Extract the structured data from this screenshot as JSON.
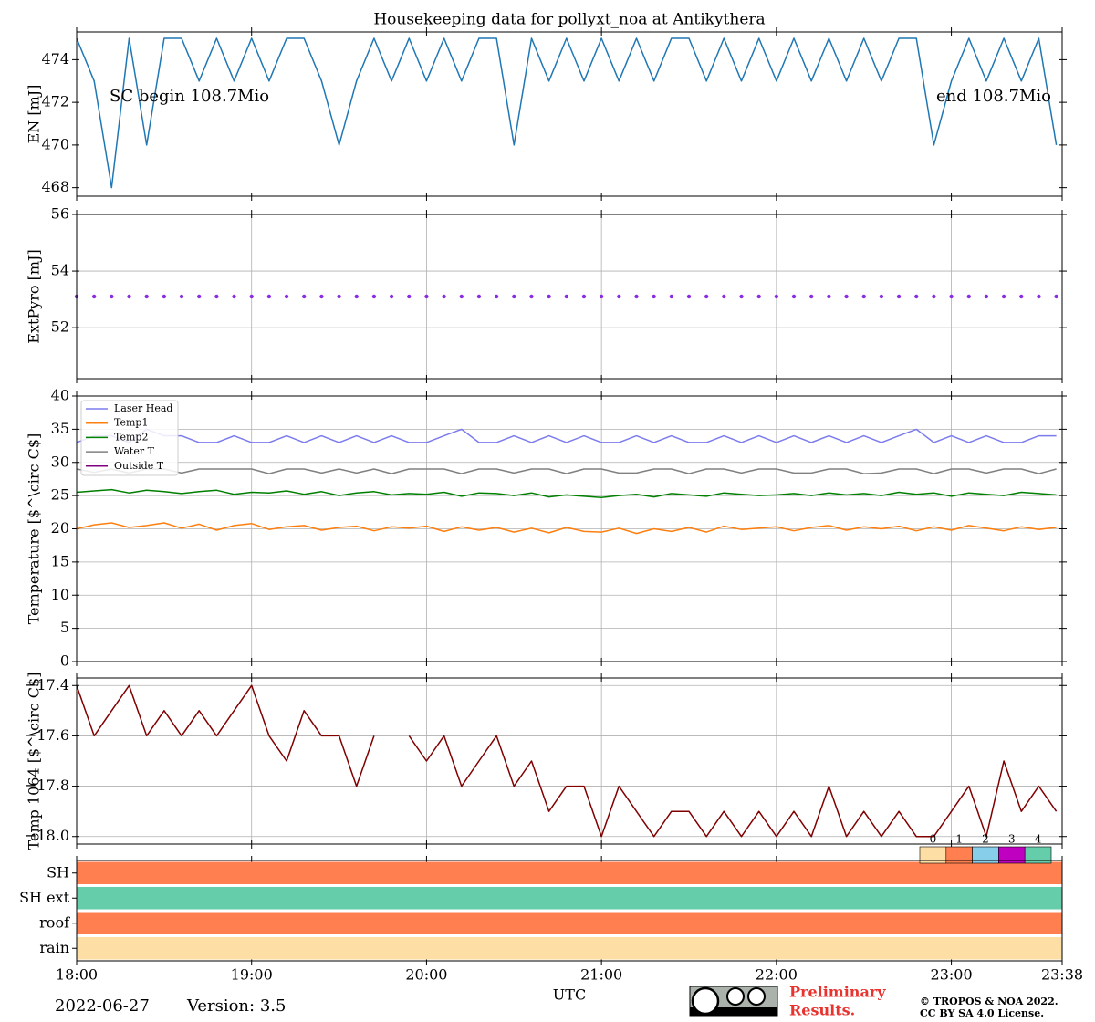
{
  "chart_data": [
    {
      "type": "line",
      "title": "Housekeeping data for pollyxt_noa at Antikythera",
      "ylabel": "EN [mJ]",
      "annotations": [
        "SC begin 108.7Mio",
        "end 108.7Mio"
      ],
      "color": "#1f77b4",
      "grid": false,
      "xlim": [
        "18:00",
        "23:38"
      ],
      "xticks": [
        "18:00",
        "19:00",
        "20:00",
        "21:00",
        "22:00",
        "23:00",
        "23:38"
      ],
      "ylim": [
        467.6,
        475.3
      ],
      "yticks": [
        468,
        470,
        472,
        474
      ],
      "x": [
        "18:00",
        "18:06",
        "18:12",
        "18:18",
        "18:24",
        "18:30",
        "18:36",
        "18:42",
        "18:48",
        "18:54",
        "19:00",
        "19:06",
        "19:12",
        "19:18",
        "19:24",
        "19:30",
        "19:36",
        "19:42",
        "19:48",
        "19:54",
        "20:00",
        "20:06",
        "20:12",
        "20:18",
        "20:24",
        "20:30",
        "20:36",
        "20:42",
        "20:48",
        "20:54",
        "21:00",
        "21:06",
        "21:12",
        "21:18",
        "21:24",
        "21:30",
        "21:36",
        "21:42",
        "21:48",
        "21:54",
        "22:00",
        "22:06",
        "22:12",
        "22:18",
        "22:24",
        "22:30",
        "22:36",
        "22:42",
        "22:48",
        "22:54",
        "23:00",
        "23:06",
        "23:12",
        "23:18",
        "23:24",
        "23:30",
        "23:36"
      ],
      "values": [
        475,
        473,
        468,
        475,
        470,
        475,
        475,
        473,
        475,
        473,
        475,
        473,
        475,
        475,
        473,
        470,
        473,
        475,
        473,
        475,
        473,
        475,
        473,
        475,
        475,
        470,
        475,
        473,
        475,
        473,
        475,
        473,
        475,
        473,
        475,
        475,
        473,
        475,
        473,
        475,
        473,
        475,
        473,
        475,
        473,
        475,
        473,
        475,
        475,
        470,
        473,
        475,
        473,
        475,
        473,
        475,
        470
      ]
    },
    {
      "type": "scatter",
      "ylabel": "ExtPyro [mJ]",
      "color": "#8a2be2",
      "grid": true,
      "xlim": [
        "18:00",
        "23:38"
      ],
      "xticks": [
        "18:00",
        "19:00",
        "20:00",
        "21:00",
        "22:00",
        "23:00",
        "23:38"
      ],
      "ylim": [
        50.2,
        56
      ],
      "yticks": [
        52,
        54,
        56
      ],
      "x": [
        "18:00",
        "18:06",
        "18:12",
        "18:18",
        "18:24",
        "18:30",
        "18:36",
        "18:42",
        "18:48",
        "18:54",
        "19:00",
        "19:06",
        "19:12",
        "19:18",
        "19:24",
        "19:30",
        "19:36",
        "19:42",
        "19:48",
        "19:54",
        "20:00",
        "20:06",
        "20:12",
        "20:18",
        "20:24",
        "20:30",
        "20:36",
        "20:42",
        "20:48",
        "20:54",
        "21:00",
        "21:06",
        "21:12",
        "21:18",
        "21:24",
        "21:30",
        "21:36",
        "21:42",
        "21:48",
        "21:54",
        "22:00",
        "22:06",
        "22:12",
        "22:18",
        "22:24",
        "22:30",
        "22:36",
        "22:42",
        "22:48",
        "22:54",
        "23:00",
        "23:06",
        "23:12",
        "23:18",
        "23:24",
        "23:30",
        "23:36"
      ],
      "values": [
        53.1,
        53.1,
        53.1,
        53.1,
        53.1,
        53.1,
        53.1,
        53.1,
        53.1,
        53.1,
        53.1,
        53.1,
        53.1,
        53.1,
        53.1,
        53.1,
        53.1,
        53.1,
        53.1,
        53.1,
        53.1,
        53.1,
        53.1,
        53.1,
        53.1,
        53.1,
        53.1,
        53.1,
        53.1,
        53.1,
        53.1,
        53.1,
        53.1,
        53.1,
        53.1,
        53.1,
        53.1,
        53.1,
        53.1,
        53.1,
        53.1,
        53.1,
        53.1,
        53.1,
        53.1,
        53.1,
        53.1,
        53.1,
        53.1,
        53.1,
        53.1,
        53.1,
        53.1,
        53.1,
        53.1,
        53.1,
        53.1
      ]
    },
    {
      "type": "line",
      "ylabel": "Temperature [$^\\circ C$]",
      "grid": true,
      "legend": "upper left",
      "xlim": [
        "18:00",
        "23:38"
      ],
      "xticks": [
        "18:00",
        "19:00",
        "20:00",
        "21:00",
        "22:00",
        "23:00",
        "23:38"
      ],
      "ylim": [
        0,
        40
      ],
      "yticks": [
        0,
        5,
        10,
        15,
        20,
        25,
        30,
        35,
        40
      ],
      "x": [
        "18:00",
        "18:06",
        "18:12",
        "18:18",
        "18:24",
        "18:30",
        "18:36",
        "18:42",
        "18:48",
        "18:54",
        "19:00",
        "19:06",
        "19:12",
        "19:18",
        "19:24",
        "19:30",
        "19:36",
        "19:42",
        "19:48",
        "19:54",
        "20:00",
        "20:06",
        "20:12",
        "20:18",
        "20:24",
        "20:30",
        "20:36",
        "20:42",
        "20:48",
        "20:54",
        "21:00",
        "21:06",
        "21:12",
        "21:18",
        "21:24",
        "21:30",
        "21:36",
        "21:42",
        "21:48",
        "21:54",
        "22:00",
        "22:06",
        "22:12",
        "22:18",
        "22:24",
        "22:30",
        "22:36",
        "22:42",
        "22:48",
        "22:54",
        "23:00",
        "23:06",
        "23:12",
        "23:18",
        "23:24",
        "23:30",
        "23:36"
      ],
      "series": [
        {
          "name": "Laser Head",
          "color": "#7b7bee",
          "values": [
            33,
            34,
            34,
            33,
            35,
            34,
            34,
            33,
            33,
            34,
            33,
            33,
            34,
            33,
            34,
            33,
            34,
            33,
            34,
            33,
            33,
            34,
            35,
            33,
            33,
            34,
            33,
            34,
            33,
            34,
            33,
            33,
            34,
            33,
            34,
            33,
            33,
            34,
            33,
            34,
            33,
            34,
            33,
            34,
            33,
            34,
            33,
            34,
            35,
            33,
            34,
            33,
            34,
            33,
            33,
            34,
            34
          ]
        },
        {
          "name": "Temp1",
          "color": "#ff7f0e",
          "values": [
            20,
            20.6,
            20.9,
            20.2,
            20.5,
            20.9,
            20.1,
            20.7,
            19.8,
            20.5,
            20.8,
            19.9,
            20.3,
            20.5,
            19.8,
            20.2,
            20.4,
            19.7,
            20.3,
            20.1,
            20.4,
            19.6,
            20.3,
            19.8,
            20.2,
            19.5,
            20.1,
            19.4,
            20.2,
            19.6,
            19.5,
            20.1,
            19.3,
            20.0,
            19.6,
            20.2,
            19.5,
            20.4,
            19.9,
            20.1,
            20.3,
            19.7,
            20.2,
            20.5,
            19.8,
            20.3,
            20.0,
            20.4,
            19.7,
            20.3,
            19.8,
            20.5,
            20.1,
            19.7,
            20.3,
            19.9,
            20.2
          ]
        },
        {
          "name": "Temp2",
          "color": "#008000",
          "values": [
            25.5,
            25.7,
            25.9,
            25.4,
            25.8,
            25.6,
            25.3,
            25.6,
            25.8,
            25.2,
            25.5,
            25.4,
            25.7,
            25.2,
            25.6,
            25.0,
            25.4,
            25.6,
            25.1,
            25.3,
            25.2,
            25.5,
            24.9,
            25.4,
            25.3,
            25.0,
            25.4,
            24.8,
            25.1,
            24.9,
            24.7,
            25.0,
            25.2,
            24.8,
            25.3,
            25.1,
            24.9,
            25.4,
            25.2,
            25.0,
            25.1,
            25.3,
            25.0,
            25.4,
            25.1,
            25.3,
            25.0,
            25.5,
            25.2,
            25.4,
            24.9,
            25.4,
            25.2,
            25.0,
            25.5,
            25.3,
            25.1
          ]
        },
        {
          "name": "Water T",
          "color": "#808080",
          "values": [
            29,
            28.5,
            29,
            28.4,
            29,
            29,
            28.4,
            29,
            29,
            29,
            29,
            28.3,
            29,
            29,
            28.4,
            29,
            28.4,
            29,
            28.3,
            29,
            29,
            29,
            28.3,
            29,
            29,
            28.4,
            29,
            29,
            28.3,
            29,
            29,
            28.4,
            28.4,
            29,
            29,
            28.3,
            29,
            29,
            28.4,
            29,
            29,
            28.4,
            28.4,
            29,
            29,
            28.3,
            28.4,
            29,
            29,
            28.3,
            29,
            29,
            28.4,
            29,
            29,
            28.3,
            29
          ]
        },
        {
          "name": "Outside T",
          "color": "#800080",
          "values": [
            null,
            null,
            null,
            null,
            null,
            null,
            null,
            null,
            null,
            null,
            null,
            null,
            null,
            null,
            null,
            null,
            null,
            null,
            null,
            null,
            null,
            null,
            null,
            null,
            null,
            null,
            null,
            null,
            null,
            null,
            null,
            null,
            null,
            null,
            null,
            null,
            null,
            null,
            null,
            null,
            null,
            null,
            null,
            null,
            null,
            null,
            null,
            null,
            null,
            null,
            null,
            null,
            null,
            null,
            null,
            null,
            null
          ]
        }
      ]
    },
    {
      "type": "line",
      "ylabel": "Temp 1064 [$^\\circ C$]",
      "color": "#800000",
      "grid": true,
      "xlim": [
        "18:00",
        "23:38"
      ],
      "xticks": [
        "18:00",
        "19:00",
        "20:00",
        "21:00",
        "22:00",
        "23:00",
        "23:38"
      ],
      "ylim": [
        -18.03,
        -17.37
      ],
      "yticks": [
        {
          "value": -18.0,
          "label": "−18.0"
        },
        {
          "value": -17.8,
          "label": "−17.8"
        },
        {
          "value": -17.6,
          "label": "−17.6"
        },
        {
          "value": -17.4,
          "label": "−17.4"
        }
      ],
      "x": [
        "18:00",
        "18:06",
        "18:12",
        "18:18",
        "18:24",
        "18:30",
        "18:36",
        "18:42",
        "18:48",
        "18:54",
        "19:00",
        "19:06",
        "19:12",
        "19:18",
        "19:24",
        "19:30",
        "19:36",
        "19:42",
        "19:48",
        "19:54",
        "20:00",
        "20:06",
        "20:12",
        "20:18",
        "20:24",
        "20:30",
        "20:36",
        "20:42",
        "20:48",
        "20:54",
        "21:00",
        "21:06",
        "21:12",
        "21:18",
        "21:24",
        "21:30",
        "21:36",
        "21:42",
        "21:48",
        "21:54",
        "22:00",
        "22:06",
        "22:12",
        "22:18",
        "22:24",
        "22:30",
        "22:36",
        "22:42",
        "22:48",
        "22:54",
        "23:00",
        "23:06",
        "23:12",
        "23:18",
        "23:24",
        "23:30",
        "23:36"
      ],
      "values": [
        -17.4,
        -17.6,
        -17.5,
        -17.4,
        -17.6,
        -17.5,
        -17.6,
        -17.5,
        -17.6,
        -17.5,
        -17.4,
        -17.6,
        -17.7,
        -17.5,
        -17.6,
        -17.6,
        -17.8,
        -17.6,
        null,
        -17.6,
        -17.7,
        -17.6,
        -17.8,
        -17.7,
        -17.6,
        -17.8,
        -17.7,
        -17.9,
        -17.8,
        -17.8,
        -18.0,
        -17.8,
        -17.9,
        -18.0,
        -17.9,
        -17.9,
        -18.0,
        -17.9,
        -18.0,
        -17.9,
        -18.0,
        -17.9,
        -18.0,
        -17.8,
        -18.0,
        -17.9,
        -18.0,
        -17.9,
        -18.0,
        -18.0,
        -17.9,
        -17.8,
        -18.0,
        -17.7,
        -17.9,
        -17.8,
        -17.9
      ]
    },
    {
      "type": "status",
      "xlabel": "UTC",
      "grid": false,
      "xlim": [
        "18:00",
        "23:38"
      ],
      "xticks": [
        "18:00",
        "19:00",
        "20:00",
        "21:00",
        "22:00",
        "23:00",
        "23:38"
      ],
      "categories": [
        "SH",
        "SH ext",
        "roof",
        "rain"
      ],
      "values": [
        1,
        4,
        1,
        0
      ],
      "colorbar_ticks": [
        0,
        1,
        2,
        3,
        4
      ],
      "colors": [
        "#fddea5",
        "#ff7f50",
        "#87ceeb",
        "#c000c0",
        "#66cdaa"
      ]
    }
  ],
  "footer": {
    "date": "2022-06-27",
    "version": "Version: 3.5",
    "notice": [
      "Preliminary",
      "Results."
    ],
    "copyright": [
      "© TROPOS & NOA 2022.",
      "CC BY SA 4.0 License."
    ]
  }
}
